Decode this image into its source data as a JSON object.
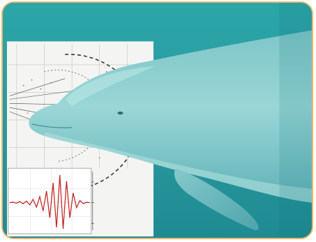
{
  "image": {
    "subject": "dolphin",
    "frame_color": "#f0b66a",
    "water_color": "#2a9aa0"
  },
  "beam_plot": {
    "kind": "echolocation-beam-pattern"
  },
  "waveform": {
    "kind": "echolocation-click-waveform",
    "line_color": "#c62828",
    "trace": [
      0,
      0.02,
      -0.02,
      0.04,
      -0.04,
      0.06,
      -0.08,
      0.12,
      -0.16,
      0.22,
      -0.3,
      0.42,
      -0.55,
      0.72,
      -0.9,
      1.0,
      -0.95,
      0.78,
      -0.55,
      0.35,
      -0.18,
      0.08,
      -0.03,
      0.01,
      0
    ]
  }
}
